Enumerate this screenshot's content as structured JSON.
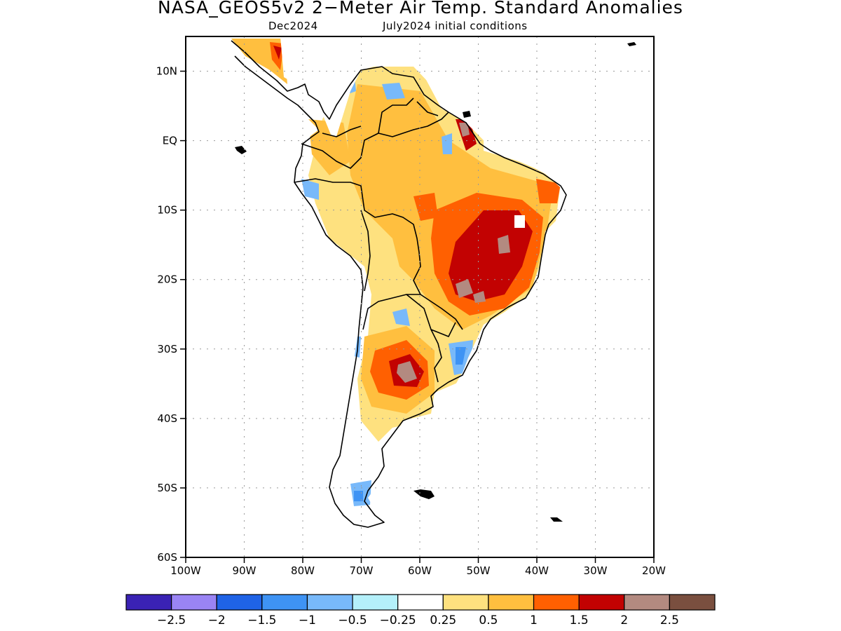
{
  "title": "NASA_GEOS5v2 2−Meter Air Temp. Standard Anomalies",
  "subtitle_left": "Dec2024",
  "subtitle_right": "July2024 initial conditions",
  "map": {
    "lon_range": [
      -100,
      -20
    ],
    "lat_range": [
      -60,
      15
    ],
    "lon_ticks": [
      {
        "value": -100,
        "label": "100W"
      },
      {
        "value": -90,
        "label": "90W"
      },
      {
        "value": -80,
        "label": "80W"
      },
      {
        "value": -70,
        "label": "70W"
      },
      {
        "value": -60,
        "label": "60W"
      },
      {
        "value": -50,
        "label": "50W"
      },
      {
        "value": -40,
        "label": "40W"
      },
      {
        "value": -30,
        "label": "30W"
      },
      {
        "value": -20,
        "label": "20W"
      }
    ],
    "lat_ticks": [
      {
        "value": 10,
        "label": "10N"
      },
      {
        "value": 0,
        "label": "EQ"
      },
      {
        "value": -10,
        "label": "10S"
      },
      {
        "value": -20,
        "label": "20S"
      },
      {
        "value": -30,
        "label": "30S"
      },
      {
        "value": -40,
        "label": "40S"
      },
      {
        "value": -50,
        "label": "50S"
      },
      {
        "value": -60,
        "label": "60S"
      }
    ],
    "grid": "dotted"
  },
  "colorbar": {
    "colors": [
      "#3a22b4",
      "#9a84f4",
      "#1f63e6",
      "#3e93f4",
      "#78b9fa",
      "#b4f0fa",
      "#ffffff",
      "#fee17f",
      "#ffbf3f",
      "#ff6001",
      "#c20202",
      "#b38a80",
      "#7a4f3f"
    ],
    "labels": [
      "−2.5",
      "−2",
      "−1.5",
      "−1",
      "−0.5",
      "−0.25",
      "0.25",
      "0.5",
      "1",
      "1.5",
      "2",
      "2.5"
    ]
  }
}
